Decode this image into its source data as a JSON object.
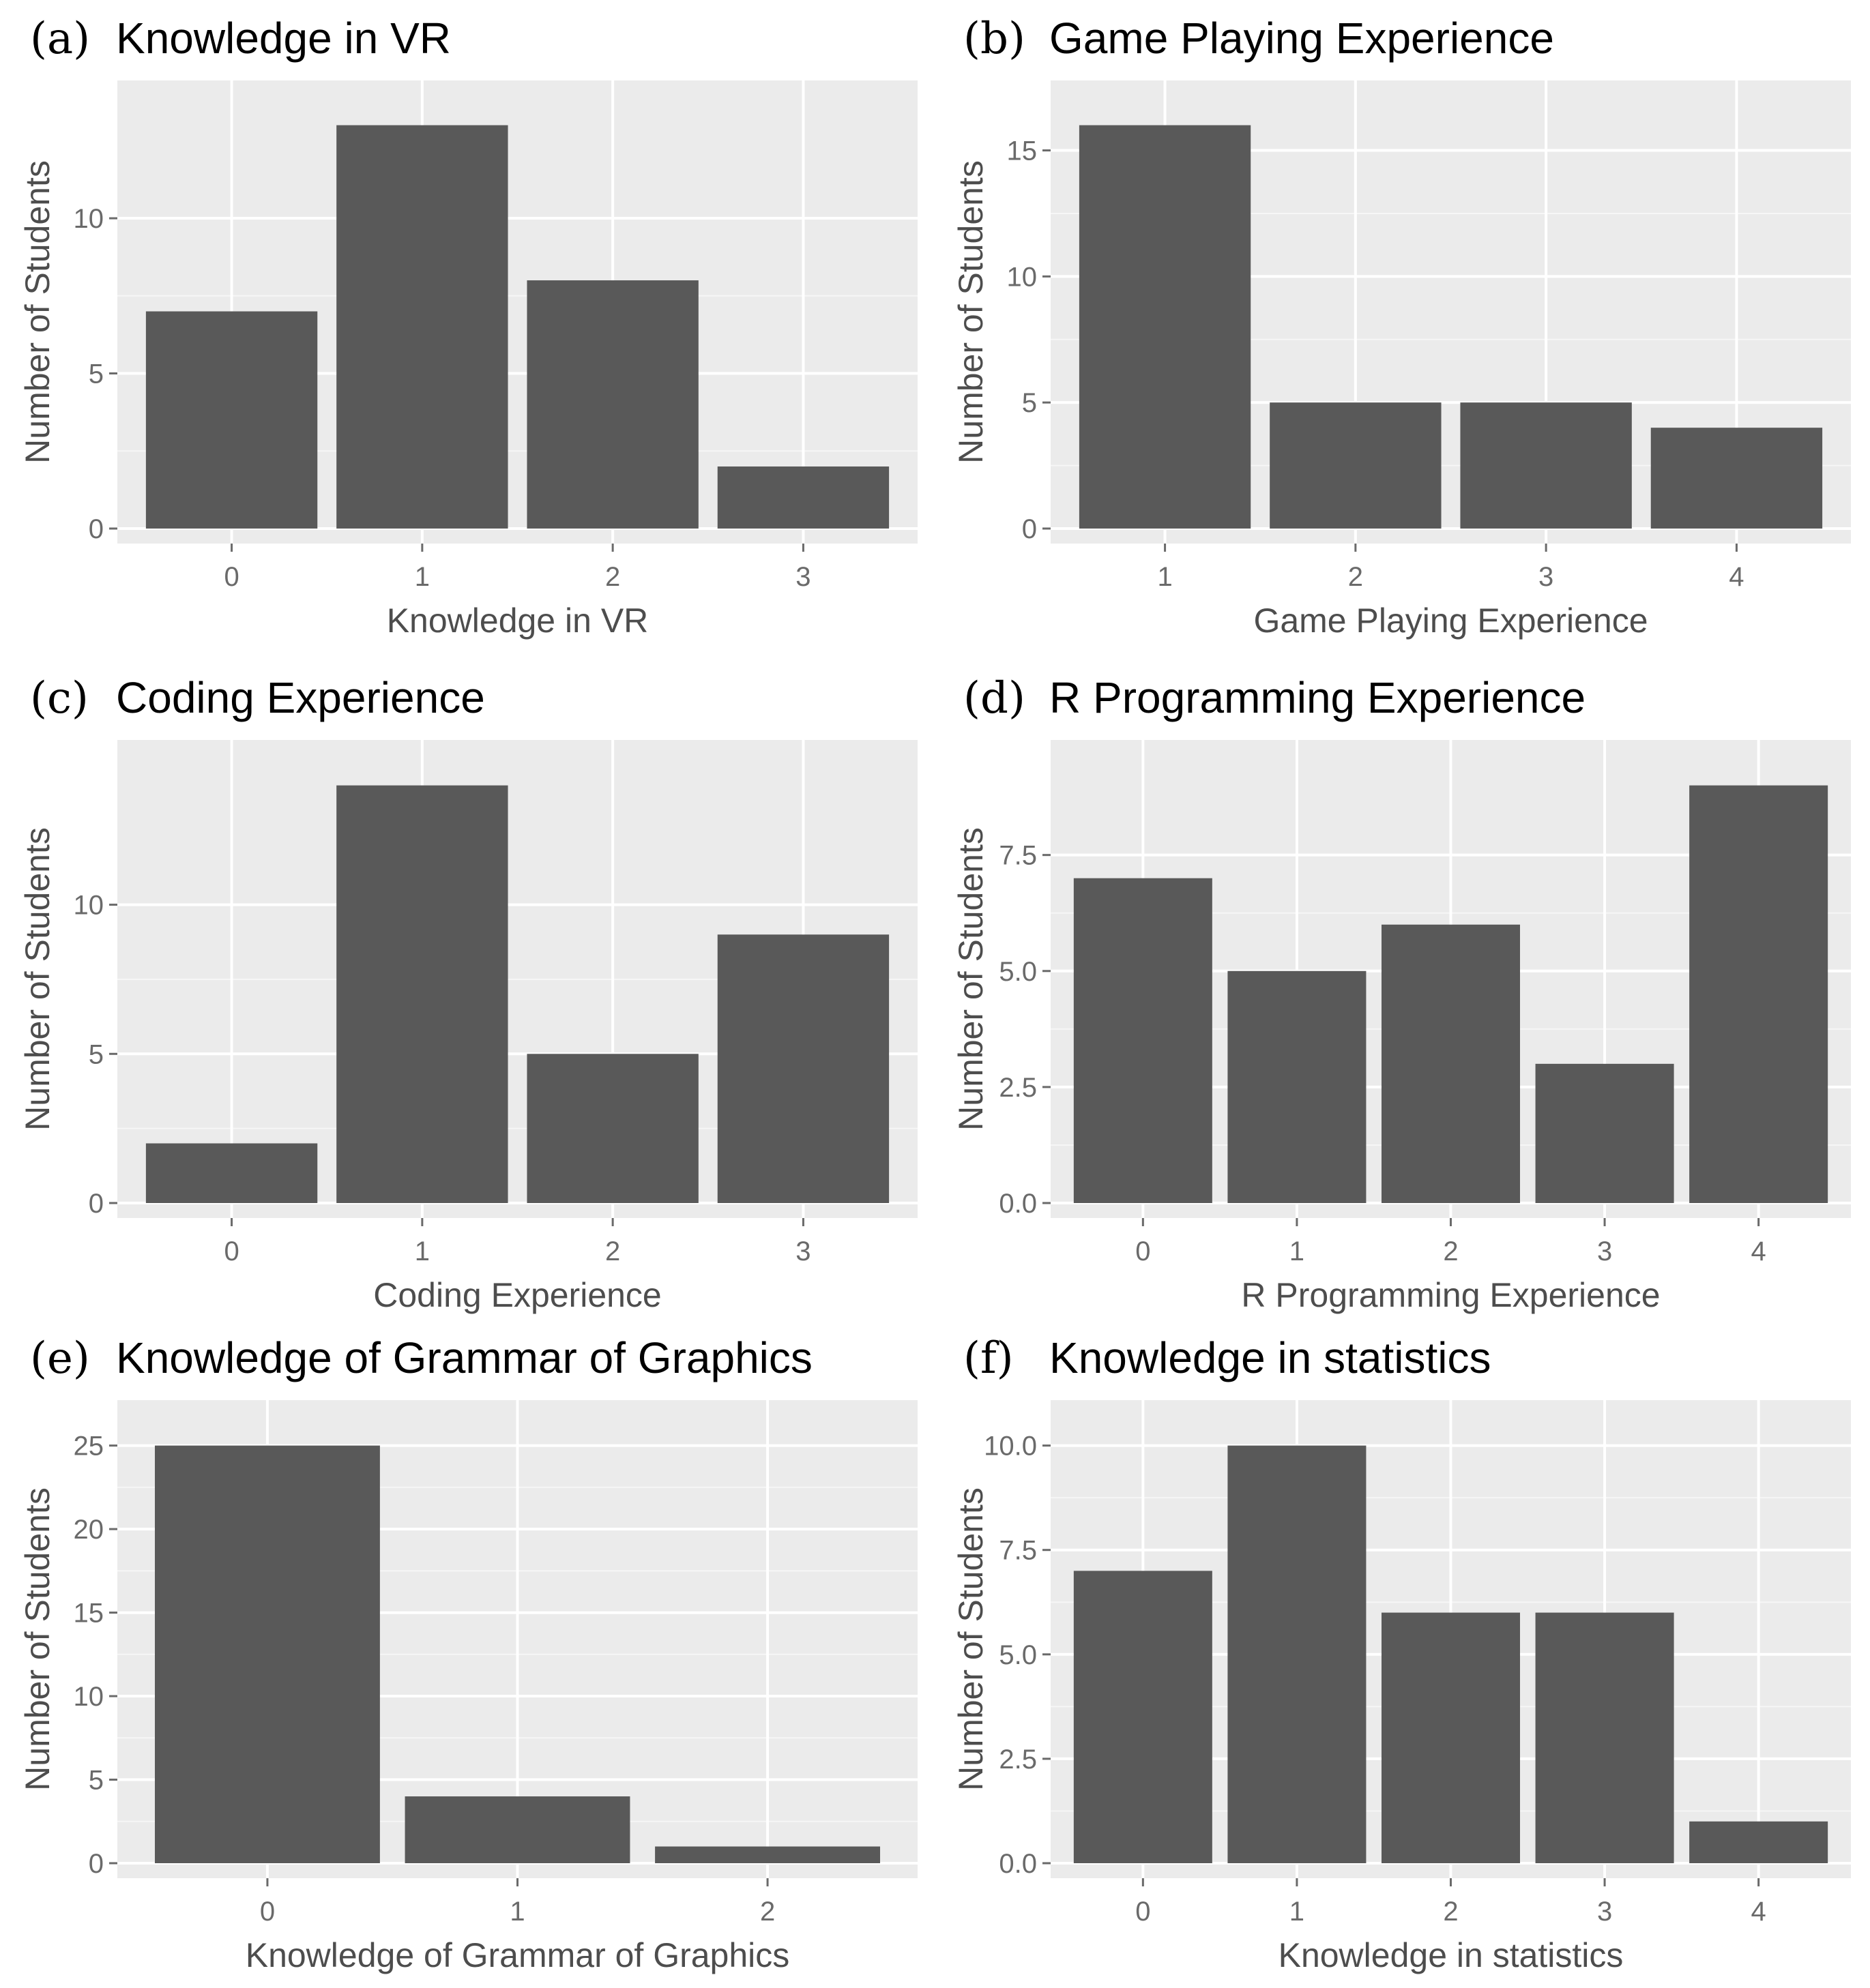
{
  "chart_data": [
    {
      "type": "bar",
      "tag": "(a)",
      "title": "Knowledge in VR",
      "xlabel": "Knowledge in VR",
      "ylabel": "Number of Students",
      "categories": [
        "0",
        "1",
        "2",
        "3"
      ],
      "values": [
        7,
        13,
        8,
        2
      ],
      "ylim": [
        0,
        13.65
      ],
      "yticks": [
        "0",
        "5",
        "10"
      ],
      "ytick_values": [
        0,
        5,
        10
      ],
      "bar_color": "#595959"
    },
    {
      "type": "bar",
      "tag": "(b)",
      "title": "Game Playing Experience",
      "xlabel": "Game Playing Experience",
      "ylabel": "Number of Students",
      "categories": [
        "1",
        "2",
        "3",
        "4"
      ],
      "values": [
        16,
        5,
        5,
        4
      ],
      "ylim": [
        0,
        16.8
      ],
      "yticks": [
        "0",
        "5",
        "10",
        "15"
      ],
      "ytick_values": [
        0,
        5,
        10,
        15
      ],
      "bar_color": "#595959"
    },
    {
      "type": "bar",
      "tag": "(c)",
      "title": "Coding Experience",
      "xlabel": "Coding Experience",
      "ylabel": "Number of Students",
      "categories": [
        "0",
        "1",
        "2",
        "3"
      ],
      "values": [
        2,
        14,
        5,
        9
      ],
      "ylim": [
        0,
        14.7
      ],
      "yticks": [
        "0",
        "5",
        "10"
      ],
      "ytick_values": [
        0,
        5,
        10
      ],
      "bar_color": "#595959"
    },
    {
      "type": "bar",
      "tag": "(d)",
      "title": "R Programming Experience",
      "xlabel": "R Programming Experience",
      "ylabel": "Number of Students",
      "categories": [
        "0",
        "1",
        "2",
        "3",
        "4"
      ],
      "values": [
        7,
        5,
        6,
        3,
        9
      ],
      "ylim": [
        0,
        9.45
      ],
      "yticks": [
        "0.0",
        "2.5",
        "5.0",
        "7.5"
      ],
      "ytick_values": [
        0,
        2.5,
        5,
        7.5
      ],
      "bar_color": "#595959"
    },
    {
      "type": "bar",
      "tag": "(e)",
      "title": "Knowledge of Grammar of Graphics",
      "xlabel": "Knowledge of Grammar of Graphics",
      "ylabel": "Number of Students",
      "categories": [
        "0",
        "1",
        "2"
      ],
      "values": [
        25,
        4,
        1
      ],
      "ylim": [
        0,
        26.25
      ],
      "yticks": [
        "0",
        "5",
        "10",
        "15",
        "20",
        "25"
      ],
      "ytick_values": [
        0,
        5,
        10,
        15,
        20,
        25
      ],
      "bar_color": "#595959"
    },
    {
      "type": "bar",
      "tag": "(f)",
      "title": "Knowledge  in statistics",
      "xlabel": "Knowledge in statistics",
      "ylabel": "Number of Students",
      "categories": [
        "0",
        "1",
        "2",
        "3",
        "4"
      ],
      "values": [
        7,
        10,
        6,
        6,
        1
      ],
      "ylim": [
        0,
        10.5
      ],
      "yticks": [
        "0.0",
        "2.5",
        "5.0",
        "7.5",
        "10.0"
      ],
      "ytick_values": [
        0,
        2.5,
        5,
        7.5,
        10
      ],
      "bar_color": "#595959"
    }
  ]
}
